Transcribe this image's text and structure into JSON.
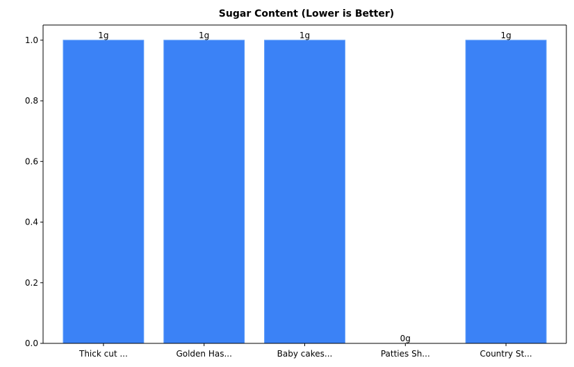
{
  "chart_data": {
    "type": "bar",
    "title": "Sugar Content (Lower is Better)",
    "xlabel": "",
    "ylabel": "",
    "categories": [
      "Thick cut ...",
      "Golden Has...",
      "Baby cakes...",
      "Patties Sh...",
      "Country St..."
    ],
    "values": [
      1,
      1,
      1,
      0,
      1
    ],
    "data_labels": [
      "1g",
      "1g",
      "1g",
      "0g",
      "1g"
    ],
    "ylim": [
      0,
      1.05
    ],
    "yticks": [
      0.0,
      0.2,
      0.4,
      0.6,
      0.8,
      1.0
    ],
    "ytick_labels": [
      "0.0",
      "0.2",
      "0.4",
      "0.6",
      "0.8",
      "1.0"
    ],
    "grid": false,
    "legend": "none",
    "colors": {
      "bar_fill": "#3b82f6",
      "bar_edge": "#5b9bf8",
      "axis": "#000000",
      "text": "#000000"
    }
  }
}
